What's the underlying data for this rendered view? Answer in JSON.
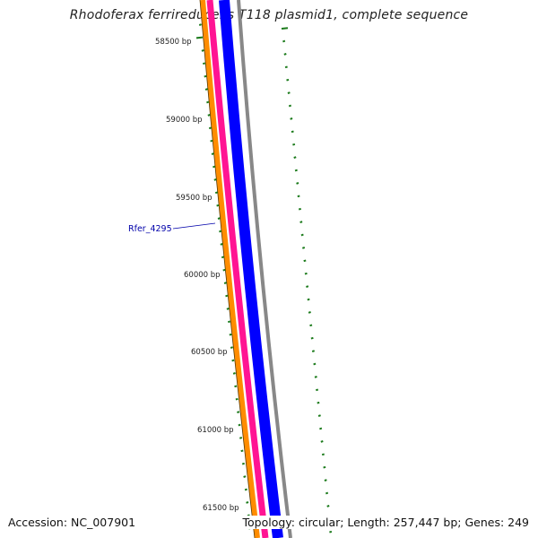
{
  "header": {
    "title": "Rhodoferax ferrireducens T118 plasmid1, complete sequence"
  },
  "footer": {
    "accession": "Accession: NC_007901",
    "summary": "Topology: circular; Length: 257,447 bp; Genes: 249"
  },
  "ruler": {
    "ticks": [
      {
        "label": "58500 bp"
      },
      {
        "label": "59000 bp"
      },
      {
        "label": "59500 bp"
      },
      {
        "label": "60000 bp"
      },
      {
        "label": "60500 bp"
      },
      {
        "label": "61000 bp"
      },
      {
        "label": "61500 bp"
      }
    ]
  },
  "features": {
    "gene_label": "Rfer_4295"
  },
  "colors": {
    "background": "#ffffff",
    "ring_orange": "#ff8c00",
    "ring_pink": "#ff1493",
    "ring_blue": "#0000ff",
    "ring_gray": "#888888",
    "tick_green": "#1a7a1a",
    "label_blue": "#0000aa"
  }
}
